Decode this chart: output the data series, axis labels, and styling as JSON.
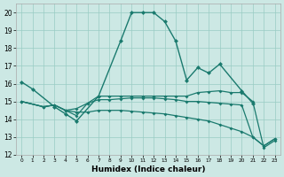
{
  "xlabel": "Humidex (Indice chaleur)",
  "background_color": "#cce8e4",
  "grid_color": "#99ccc4",
  "line_color": "#1a7a6e",
  "xlim": [
    -0.5,
    23.5
  ],
  "ylim": [
    12,
    20.5
  ],
  "yticks": [
    12,
    13,
    14,
    15,
    16,
    17,
    18,
    19,
    20
  ],
  "xticks": [
    0,
    1,
    2,
    3,
    4,
    5,
    6,
    7,
    8,
    9,
    10,
    11,
    12,
    13,
    14,
    15,
    16,
    17,
    18,
    19,
    20,
    21,
    22,
    23
  ],
  "lines": [
    {
      "x": [
        0,
        1,
        3,
        4,
        5,
        7,
        9,
        10,
        11,
        12,
        13,
        14,
        15,
        16,
        17,
        18,
        20,
        21
      ],
      "y": [
        16.1,
        15.7,
        14.7,
        14.3,
        13.9,
        15.3,
        18.4,
        20.0,
        20.0,
        20.0,
        19.5,
        18.4,
        16.2,
        16.9,
        16.6,
        17.1,
        15.6,
        14.9
      ]
    },
    {
      "x": [
        0,
        2,
        3,
        4,
        5,
        6,
        7,
        8,
        9,
        10,
        11,
        12,
        13,
        14,
        15,
        16,
        17,
        18,
        19,
        20,
        21,
        22,
        23
      ],
      "y": [
        15.0,
        14.7,
        14.8,
        14.5,
        14.2,
        14.9,
        15.3,
        15.3,
        15.3,
        15.3,
        15.3,
        15.3,
        15.3,
        15.3,
        15.3,
        15.5,
        15.55,
        15.6,
        15.5,
        15.5,
        15.0,
        12.4,
        12.8
      ]
    },
    {
      "x": [
        0,
        2,
        3,
        4,
        5,
        6,
        7,
        8,
        9,
        10,
        11,
        12,
        13,
        14,
        15,
        16,
        17,
        18,
        19,
        20,
        21,
        22,
        23
      ],
      "y": [
        15.0,
        14.7,
        14.8,
        14.5,
        14.6,
        14.9,
        15.1,
        15.1,
        15.15,
        15.2,
        15.2,
        15.2,
        15.15,
        15.1,
        15.0,
        15.0,
        14.95,
        14.9,
        14.85,
        14.8,
        13.0,
        12.5,
        12.9
      ]
    },
    {
      "x": [
        0,
        2,
        3,
        4,
        5,
        6,
        7,
        8,
        9,
        10,
        11,
        12,
        13,
        14,
        15,
        16,
        17,
        18,
        19,
        20,
        21,
        22,
        23
      ],
      "y": [
        15.0,
        14.7,
        14.8,
        14.5,
        14.4,
        14.4,
        14.5,
        14.5,
        14.5,
        14.45,
        14.4,
        14.35,
        14.3,
        14.2,
        14.1,
        14.0,
        13.9,
        13.7,
        13.5,
        13.3,
        13.0,
        12.5,
        12.9
      ]
    }
  ]
}
